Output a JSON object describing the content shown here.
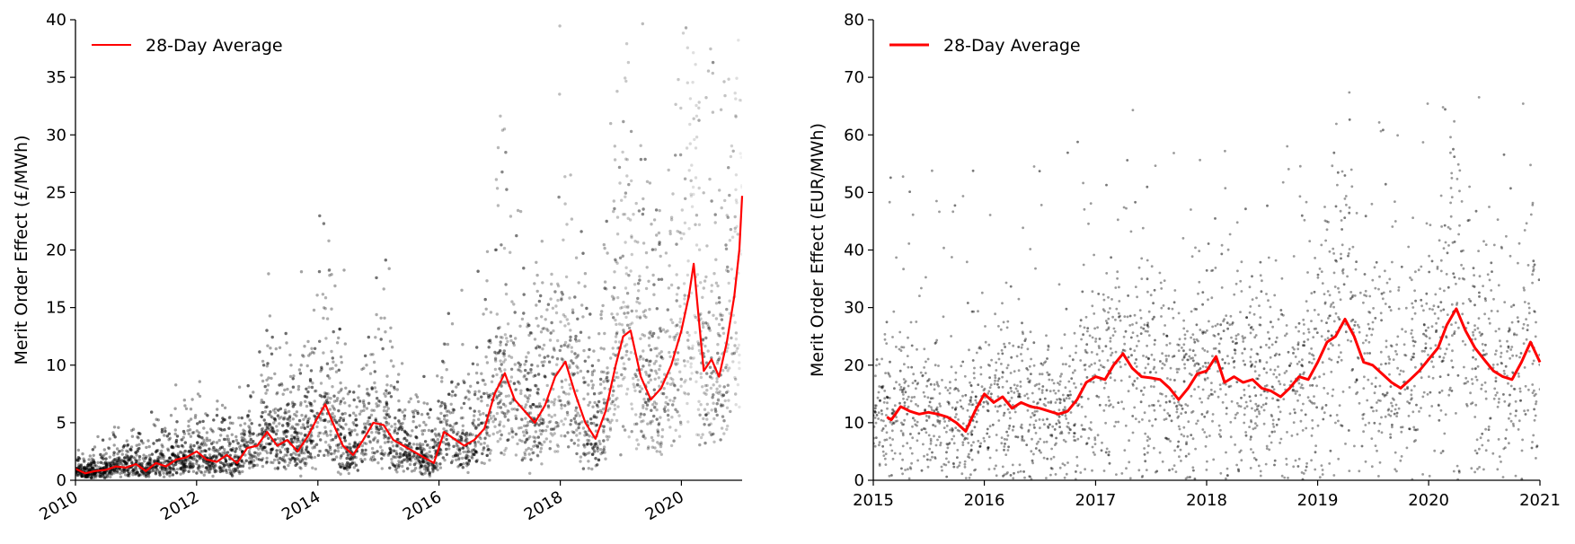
{
  "chart_data": [
    {
      "type": "scatter",
      "ylabel": "Merit Order Effect (£/MWh)",
      "xlabel": "",
      "xlim": [
        "2010-01-01",
        "2021-01-01"
      ],
      "ylim": [
        0,
        40
      ],
      "x_ticks": [
        "2010",
        "2012",
        "2014",
        "2016",
        "2018",
        "2020"
      ],
      "y_ticks": [
        0,
        5,
        10,
        15,
        20,
        25,
        30,
        35,
        40
      ],
      "x_tick_rotation": "slanted",
      "legend": {
        "position": "top-left",
        "entries": [
          "28-Day Average"
        ]
      },
      "grid": false,
      "colors": {
        "average": "#ff0000",
        "points": "#000000"
      },
      "series": [
        {
          "name": "28-Day Average",
          "type": "line",
          "points": [
            [
              "2010-01-01",
              1.0
            ],
            [
              "2010-03-01",
              0.6
            ],
            [
              "2010-05-01",
              0.8
            ],
            [
              "2010-07-01",
              0.9
            ],
            [
              "2010-09-01",
              1.2
            ],
            [
              "2010-11-01",
              1.1
            ],
            [
              "2011-01-01",
              1.4
            ],
            [
              "2011-03-01",
              0.8
            ],
            [
              "2011-05-01",
              1.5
            ],
            [
              "2011-07-01",
              1.2
            ],
            [
              "2011-09-01",
              1.8
            ],
            [
              "2011-11-01",
              2.0
            ],
            [
              "2012-01-01",
              2.5
            ],
            [
              "2012-03-01",
              1.8
            ],
            [
              "2012-05-01",
              1.6
            ],
            [
              "2012-07-01",
              2.2
            ],
            [
              "2012-09-01",
              1.5
            ],
            [
              "2012-11-01",
              2.8
            ],
            [
              "2013-01-01",
              3.0
            ],
            [
              "2013-03-01",
              4.2
            ],
            [
              "2013-05-01",
              3.0
            ],
            [
              "2013-07-01",
              3.5
            ],
            [
              "2013-09-01",
              2.5
            ],
            [
              "2013-11-01",
              3.8
            ],
            [
              "2014-01-01",
              5.5
            ],
            [
              "2014-02-15",
              6.6
            ],
            [
              "2014-04-01",
              5.0
            ],
            [
              "2014-06-01",
              3.0
            ],
            [
              "2014-08-01",
              2.2
            ],
            [
              "2014-10-01",
              3.5
            ],
            [
              "2014-12-01",
              5.0
            ],
            [
              "2015-02-01",
              4.8
            ],
            [
              "2015-04-01",
              3.5
            ],
            [
              "2015-06-01",
              3.0
            ],
            [
              "2015-08-01",
              2.5
            ],
            [
              "2015-10-01",
              2.0
            ],
            [
              "2015-12-01",
              1.5
            ],
            [
              "2016-02-01",
              4.2
            ],
            [
              "2016-04-01",
              3.6
            ],
            [
              "2016-06-01",
              3.0
            ],
            [
              "2016-08-01",
              3.5
            ],
            [
              "2016-10-01",
              4.5
            ],
            [
              "2016-12-01",
              7.5
            ],
            [
              "2017-02-01",
              9.3
            ],
            [
              "2017-04-01",
              7.0
            ],
            [
              "2017-06-01",
              6.0
            ],
            [
              "2017-08-01",
              5.0
            ],
            [
              "2017-10-01",
              6.5
            ],
            [
              "2017-12-01",
              9.0
            ],
            [
              "2018-02-01",
              10.3
            ],
            [
              "2018-04-01",
              7.5
            ],
            [
              "2018-06-01",
              5.0
            ],
            [
              "2018-08-01",
              3.6
            ],
            [
              "2018-10-01",
              6.0
            ],
            [
              "2018-12-01",
              10.0
            ],
            [
              "2019-01-15",
              12.5
            ],
            [
              "2019-03-01",
              13.0
            ],
            [
              "2019-05-01",
              9.0
            ],
            [
              "2019-07-01",
              7.0
            ],
            [
              "2019-09-01",
              8.0
            ],
            [
              "2019-11-01",
              10.0
            ],
            [
              "2020-01-01",
              13.0
            ],
            [
              "2020-02-15",
              16.0
            ],
            [
              "2020-03-15",
              18.8
            ],
            [
              "2020-04-15",
              14.0
            ],
            [
              "2020-05-15",
              9.5
            ],
            [
              "2020-07-01",
              10.5
            ],
            [
              "2020-08-15",
              9.0
            ],
            [
              "2020-10-01",
              12.0
            ],
            [
              "2020-11-15",
              16.0
            ],
            [
              "2020-12-15",
              20.0
            ],
            [
              "2021-01-01",
              24.7
            ]
          ]
        }
      ]
    },
    {
      "type": "scatter",
      "ylabel": "Merit Order Effect (EUR/MWh)",
      "xlabel": "",
      "xlim": [
        "2015-01-01",
        "2021-01-01"
      ],
      "ylim": [
        0,
        80
      ],
      "x_ticks": [
        "2015",
        "2016",
        "2017",
        "2018",
        "2019",
        "2020",
        "2021"
      ],
      "y_ticks": [
        0,
        10,
        20,
        30,
        40,
        50,
        60,
        70,
        80
      ],
      "x_tick_rotation": "none",
      "legend": {
        "position": "top-left",
        "entries": [
          "28-Day Average"
        ]
      },
      "grid": false,
      "colors": {
        "average": "#ff0000",
        "points": "#000000"
      },
      "series": [
        {
          "name": "28-Day Average",
          "type": "line",
          "points": [
            [
              "2015-02-15",
              11.0
            ],
            [
              "2015-03-01",
              10.5
            ],
            [
              "2015-04-01",
              12.8
            ],
            [
              "2015-05-01",
              12.0
            ],
            [
              "2015-06-01",
              11.5
            ],
            [
              "2015-07-01",
              11.8
            ],
            [
              "2015-08-01",
              11.5
            ],
            [
              "2015-09-01",
              11.0
            ],
            [
              "2015-10-01",
              10.0
            ],
            [
              "2015-11-01",
              8.5
            ],
            [
              "2015-12-01",
              12.0
            ],
            [
              "2016-01-01",
              15.0
            ],
            [
              "2016-02-01",
              13.5
            ],
            [
              "2016-03-01",
              14.5
            ],
            [
              "2016-04-01",
              12.5
            ],
            [
              "2016-05-01",
              13.5
            ],
            [
              "2016-06-01",
              12.8
            ],
            [
              "2016-07-01",
              12.5
            ],
            [
              "2016-08-01",
              12.0
            ],
            [
              "2016-09-01",
              11.5
            ],
            [
              "2016-10-01",
              12.0
            ],
            [
              "2016-11-01",
              14.0
            ],
            [
              "2016-12-01",
              17.0
            ],
            [
              "2017-01-01",
              18.0
            ],
            [
              "2017-02-01",
              17.5
            ],
            [
              "2017-03-01",
              20.0
            ],
            [
              "2017-04-01",
              22.0
            ],
            [
              "2017-05-01",
              19.5
            ],
            [
              "2017-06-01",
              18.0
            ],
            [
              "2017-07-01",
              17.8
            ],
            [
              "2017-08-01",
              17.5
            ],
            [
              "2017-09-01",
              16.0
            ],
            [
              "2017-10-01",
              14.0
            ],
            [
              "2017-11-01",
              16.0
            ],
            [
              "2017-12-01",
              18.5
            ],
            [
              "2018-01-01",
              19.0
            ],
            [
              "2018-02-01",
              21.5
            ],
            [
              "2018-03-01",
              17.0
            ],
            [
              "2018-04-01",
              18.0
            ],
            [
              "2018-05-01",
              17.0
            ],
            [
              "2018-06-01",
              17.5
            ],
            [
              "2018-07-01",
              16.0
            ],
            [
              "2018-08-01",
              15.5
            ],
            [
              "2018-09-01",
              14.5
            ],
            [
              "2018-10-01",
              16.0
            ],
            [
              "2018-11-01",
              18.0
            ],
            [
              "2018-12-01",
              17.5
            ],
            [
              "2019-01-01",
              20.5
            ],
            [
              "2019-02-01",
              24.0
            ],
            [
              "2019-03-01",
              25.0
            ],
            [
              "2019-04-01",
              28.0
            ],
            [
              "2019-05-01",
              25.0
            ],
            [
              "2019-06-01",
              20.5
            ],
            [
              "2019-07-01",
              20.0
            ],
            [
              "2019-08-01",
              18.5
            ],
            [
              "2019-09-01",
              17.0
            ],
            [
              "2019-10-01",
              16.0
            ],
            [
              "2019-11-01",
              17.5
            ],
            [
              "2019-12-01",
              19.0
            ],
            [
              "2020-01-01",
              21.0
            ],
            [
              "2020-02-01",
              23.0
            ],
            [
              "2020-03-01",
              27.0
            ],
            [
              "2020-04-01",
              29.8
            ],
            [
              "2020-05-01",
              26.0
            ],
            [
              "2020-06-01",
              23.0
            ],
            [
              "2020-07-01",
              21.0
            ],
            [
              "2020-08-01",
              19.0
            ],
            [
              "2020-09-01",
              18.0
            ],
            [
              "2020-10-01",
              17.5
            ],
            [
              "2020-11-01",
              20.5
            ],
            [
              "2020-12-01",
              24.0
            ],
            [
              "2021-01-01",
              20.5
            ]
          ]
        }
      ]
    }
  ]
}
